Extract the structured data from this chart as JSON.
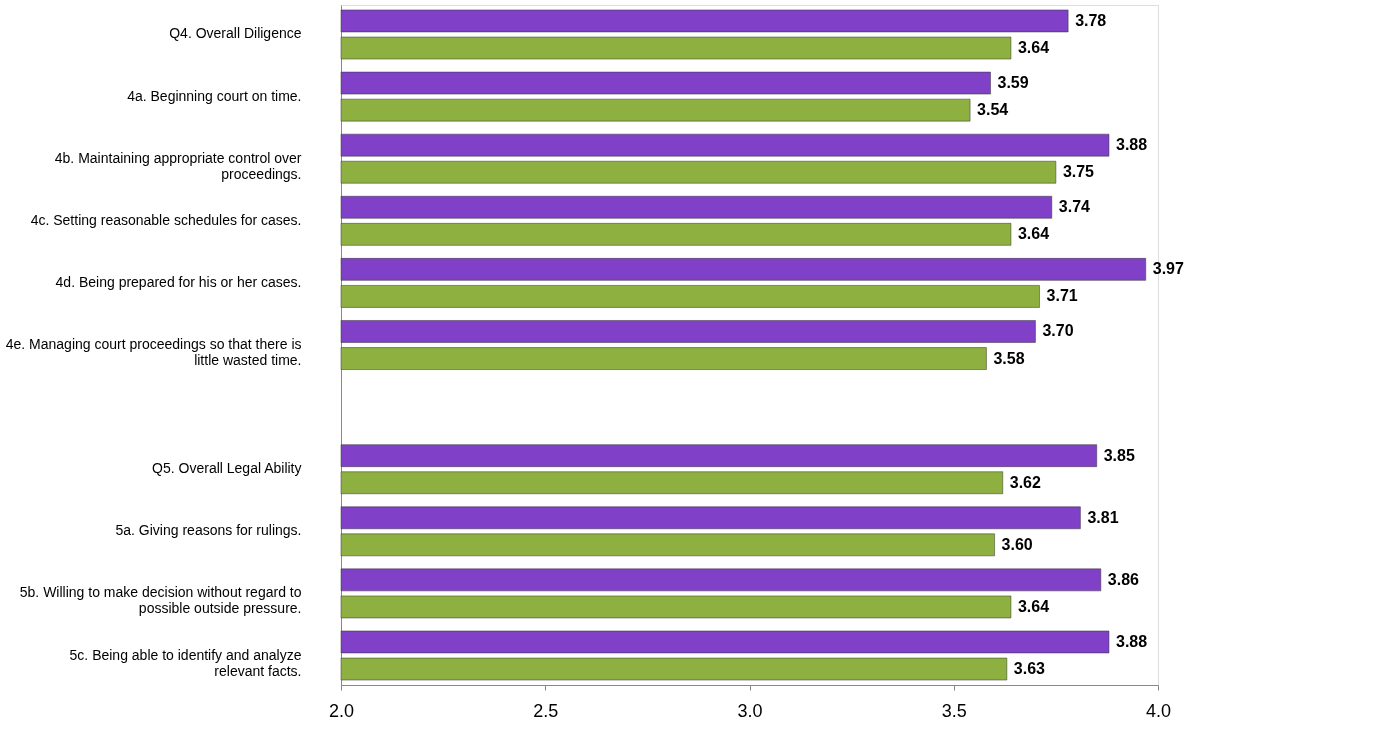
{
  "chart_data": {
    "type": "bar",
    "orientation": "horizontal",
    "categories": [
      "Q4. Overall Diligence",
      "4a. Beginning court on time.",
      "4b. Maintaining appropriate control over\nproceedings.",
      "4c. Setting reasonable schedules for cases.",
      "4d. Being prepared for his or her cases.",
      "4e. Managing court proceedings so that there is\nlittle wasted time.",
      null,
      "Q5. Overall Legal Ability",
      "5a. Giving reasons for rulings.",
      "5b. Willing to make decision without regard to\npossible outside pressure.",
      "5c. Being able to identify and analyze\nrelevant facts."
    ],
    "series": [
      {
        "color": "#8040c8",
        "values": [
          3.78,
          3.59,
          3.88,
          3.74,
          3.97,
          3.7,
          null,
          3.85,
          3.81,
          3.86,
          3.88
        ],
        "value_labels": [
          "3.78",
          "3.59",
          "3.88",
          "3.74",
          "3.97",
          "3.70",
          null,
          "3.85",
          "3.81",
          "3.86",
          "3.88"
        ]
      },
      {
        "color": "#8db040",
        "values": [
          3.64,
          3.54,
          3.75,
          3.64,
          3.71,
          3.58,
          null,
          3.62,
          3.6,
          3.64,
          3.63
        ],
        "value_labels": [
          "3.64",
          "3.54",
          "3.75",
          "3.64",
          "3.71",
          "3.58",
          null,
          "3.62",
          "3.60",
          "3.64",
          "3.63"
        ]
      }
    ],
    "xlim": [
      2,
      4
    ],
    "xticks": [
      {
        "value": 2,
        "label": "2.0"
      },
      {
        "value": 2.5,
        "label": "2.5"
      },
      {
        "value": 3,
        "label": "3.0"
      },
      {
        "value": 3.5,
        "label": "3.5"
      },
      {
        "value": 4,
        "label": "4.0"
      }
    ],
    "grid": false,
    "legend": false
  }
}
